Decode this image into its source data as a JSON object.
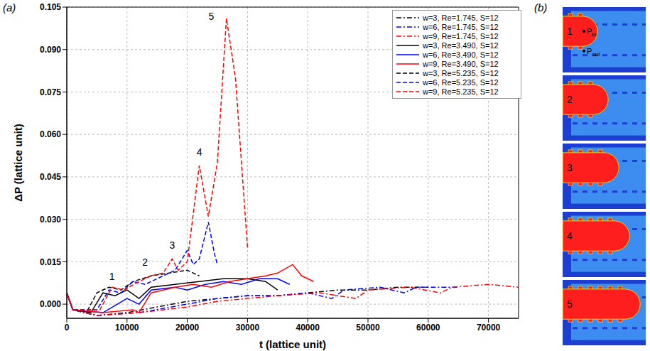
{
  "chart_data": {
    "type": "line",
    "panel_label": "(a)",
    "x_label": "t  (lattice unit)",
    "y_label": "ΔP (lattice unit)",
    "xlim": [
      0,
      75000
    ],
    "xticks": [
      0,
      10000,
      20000,
      30000,
      40000,
      50000,
      60000,
      70000
    ],
    "ylim": [
      -0.005,
      0.105
    ],
    "yticks": [
      {
        "value": 0,
        "label": "0.000"
      },
      {
        "value": 0.015,
        "label": "0.015"
      },
      {
        "value": 0.03,
        "label": "0.030"
      },
      {
        "value": 0.045,
        "label": "0.045"
      },
      {
        "value": 0.06,
        "label": "0.060"
      },
      {
        "value": 0.075,
        "label": "0.075"
      },
      {
        "value": 0.09,
        "label": "0.090"
      },
      {
        "value": 0.105,
        "label": "0.105"
      }
    ],
    "grid": true,
    "legend": "top-right",
    "series": [
      {
        "name": "w=3, Re=1.745, S=12",
        "color": "#000000",
        "line_style": "dashdot",
        "x": [
          0,
          1000,
          5000,
          10000,
          15000,
          20000,
          25000,
          30000,
          35000,
          40000,
          45000,
          50000,
          55000,
          60000
        ],
        "values": [
          0.004,
          -0.002,
          -0.004,
          -0.003,
          -0.001,
          0.001,
          0.002,
          0.003,
          0.003,
          0.004,
          0.005,
          0.005,
          0.006,
          0.006
        ]
      },
      {
        "name": "w=6, Re=1.745, S=12",
        "color": "#0000ff",
        "line_style": "dashdot",
        "x": [
          0,
          1000,
          5000,
          12000,
          20000,
          25000,
          30000,
          35000,
          40000,
          44000,
          46000,
          52000,
          56000,
          58000,
          65000
        ],
        "values": [
          0.004,
          -0.002,
          -0.004,
          -0.003,
          0.0,
          0.002,
          0.003,
          0.003,
          0.004,
          0.002,
          0.005,
          0.006,
          0.004,
          0.006,
          0.006
        ]
      },
      {
        "name": "w=9, Re=1.745, S=12",
        "color": "#ff0000",
        "line_style": "dashdot",
        "x": [
          0,
          1000,
          5000,
          12000,
          20000,
          25000,
          30000,
          35000,
          42000,
          48000,
          50000,
          57000,
          62000,
          64000,
          70000,
          75000
        ],
        "values": [
          0.004,
          -0.002,
          -0.004,
          -0.003,
          -0.001,
          0.001,
          0.002,
          0.003,
          0.004,
          0.002,
          0.005,
          0.006,
          0.004,
          0.006,
          0.007,
          0.006
        ]
      },
      {
        "name": "w=3, Re=3.490, S=12",
        "color": "#000000",
        "line_style": "solid",
        "x": [
          0,
          1000,
          4000,
          6000,
          8000,
          10000,
          12000,
          14000,
          18000,
          22000,
          26000,
          30000,
          33000,
          35000
        ],
        "values": [
          0.004,
          -0.002,
          -0.003,
          0.004,
          0.003,
          0.005,
          0.002,
          0.006,
          0.007,
          0.008,
          0.009,
          0.009,
          0.008,
          0.005
        ]
      },
      {
        "name": "w=6, Re=3.490, S=12",
        "color": "#0000ff",
        "line_style": "solid",
        "x": [
          0,
          1000,
          6000,
          10000,
          12000,
          14000,
          18000,
          20000,
          23000,
          26000,
          29000,
          32000,
          35000,
          37000
        ],
        "values": [
          0.004,
          -0.002,
          -0.003,
          0.002,
          0.0,
          0.005,
          0.006,
          0.005,
          0.007,
          0.008,
          0.007,
          0.009,
          0.009,
          0.007
        ]
      },
      {
        "name": "w=9, Re=3.490, S=12",
        "color": "#ff0000",
        "line_style": "solid",
        "x": [
          0,
          1000,
          6000,
          11000,
          12000,
          14000,
          18000,
          21000,
          24000,
          27000,
          30000,
          33000,
          35000,
          37500,
          39000,
          41000
        ],
        "values": [
          0.004,
          -0.002,
          -0.003,
          -0.002,
          -0.003,
          0.004,
          0.006,
          0.007,
          0.006,
          0.008,
          0.009,
          0.01,
          0.011,
          0.014,
          0.01,
          0.008
        ]
      },
      {
        "name": "w=3, Re=5.235, S=12",
        "color": "#000000",
        "line_style": "dashed",
        "x": [
          0,
          1000,
          3500,
          5000,
          7000,
          9000,
          11000,
          14000,
          17000,
          20000,
          22000
        ],
        "values": [
          0.004,
          -0.002,
          -0.002,
          0.004,
          0.006,
          0.005,
          0.008,
          0.01,
          0.011,
          0.012,
          0.01
        ]
      },
      {
        "name": "w=6, Re=5.235, S=12",
        "color": "#0000ff",
        "line_style": "dashed",
        "x": [
          0,
          1000,
          5000,
          7000,
          9000,
          11000,
          13000,
          16000,
          18000,
          20000,
          21000,
          22000,
          23500,
          24500,
          25000
        ],
        "values": [
          0.004,
          -0.002,
          -0.002,
          0.005,
          0.004,
          0.008,
          0.007,
          0.01,
          0.012,
          0.019,
          0.014,
          0.016,
          0.029,
          0.018,
          0.014
        ]
      },
      {
        "name": "w=9, Re=5.235, S=12",
        "color": "#ff0000",
        "line_style": "dashed",
        "x": [
          0,
          1000,
          5500,
          7500,
          9500,
          12000,
          14000,
          16000,
          17500,
          18500,
          20000,
          22000,
          23500,
          25000,
          26500,
          28000,
          30000
        ],
        "values": [
          0.004,
          -0.002,
          -0.002,
          0.006,
          0.005,
          0.008,
          0.01,
          0.011,
          0.016,
          0.012,
          0.015,
          0.049,
          0.031,
          0.05,
          0.101,
          0.08,
          0.02
        ]
      }
    ],
    "annotations": [
      {
        "text": "1",
        "x": 7500,
        "y": 0.007
      },
      {
        "text": "2",
        "x": 13000,
        "y": 0.012
      },
      {
        "text": "3",
        "x": 17500,
        "y": 0.018
      },
      {
        "text": "4",
        "x": 22000,
        "y": 0.051
      },
      {
        "text": "5",
        "x": 24000,
        "y": 0.099
      }
    ]
  },
  "diagram": {
    "panel_label": "(b)",
    "panels": [
      {
        "label": "1"
      },
      {
        "label": "2"
      },
      {
        "label": "3"
      },
      {
        "label": "4"
      },
      {
        "label": "5"
      }
    ],
    "points": [
      {
        "label": "P",
        "subscript": "in"
      },
      {
        "label": "P",
        "subscript": "out"
      }
    ]
  }
}
